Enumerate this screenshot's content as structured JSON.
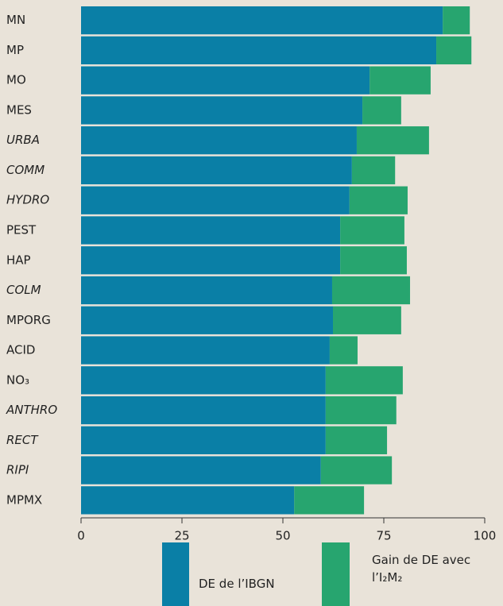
{
  "chart_data": {
    "type": "stacked_barh",
    "categories": [
      "MN",
      "MP",
      "MO",
      "MES",
      "URBA",
      "COMM",
      "HYDRO",
      "PEST",
      "HAP",
      "COLM",
      "MPORG",
      "ACID",
      "NO₃",
      "ANTHRO",
      "RECT",
      "RIPI",
      "MPMX"
    ],
    "category_styles": [
      "normal",
      "normal",
      "normal",
      "normal",
      "italic",
      "italic",
      "italic",
      "normal",
      "normal",
      "italic",
      "normal",
      "normal",
      "normal",
      "italic",
      "italic",
      "italic",
      "normal"
    ],
    "series": [
      {
        "name": "DE de l’IBGN",
        "color": "#0a7fa6",
        "values": [
          89.6,
          88.0,
          71.5,
          69.7,
          68.3,
          67.1,
          66.5,
          64.2,
          64.2,
          62.2,
          62.4,
          61.6,
          60.6,
          60.6,
          60.6,
          59.4,
          52.8
        ]
      },
      {
        "name": "Gain de DE avec l’I₂M₂",
        "color": "#27a56f",
        "values": [
          6.7,
          8.7,
          15.1,
          9.6,
          17.9,
          10.7,
          14.4,
          15.9,
          16.5,
          19.3,
          16.9,
          6.9,
          19.1,
          17.5,
          15.2,
          17.6,
          17.3
        ]
      }
    ],
    "xlim": [
      0,
      100
    ],
    "xticks": [
      0,
      25,
      50,
      75,
      100
    ]
  }
}
